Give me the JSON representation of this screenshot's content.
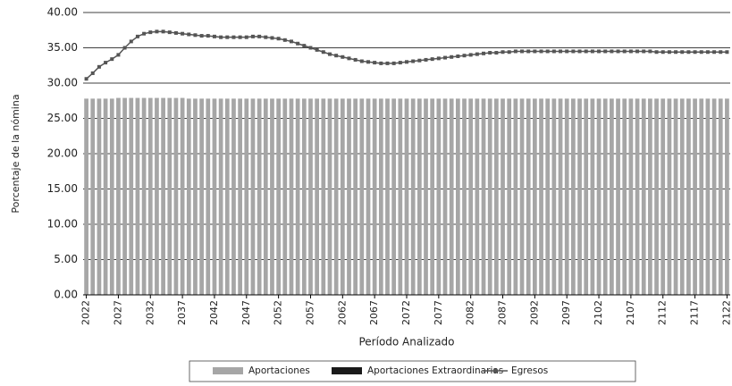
{
  "chart_data": {
    "type": "bar_line",
    "ylabel": "Porcentaje de la nómina",
    "xlabel": "Período Analizado",
    "x": [
      2022,
      2023,
      2024,
      2025,
      2026,
      2027,
      2028,
      2029,
      2030,
      2031,
      2032,
      2033,
      2034,
      2035,
      2036,
      2037,
      2038,
      2039,
      2040,
      2041,
      2042,
      2043,
      2044,
      2045,
      2046,
      2047,
      2048,
      2049,
      2050,
      2051,
      2052,
      2053,
      2054,
      2055,
      2056,
      2057,
      2058,
      2059,
      2060,
      2061,
      2062,
      2063,
      2064,
      2065,
      2066,
      2067,
      2068,
      2069,
      2070,
      2071,
      2072,
      2073,
      2074,
      2075,
      2076,
      2077,
      2078,
      2079,
      2080,
      2081,
      2082,
      2083,
      2084,
      2085,
      2086,
      2087,
      2088,
      2089,
      2090,
      2091,
      2092,
      2093,
      2094,
      2095,
      2096,
      2097,
      2098,
      2099,
      2100,
      2101,
      2102,
      2103,
      2104,
      2105,
      2106,
      2107,
      2108,
      2109,
      2110,
      2111,
      2112,
      2113,
      2114,
      2115,
      2116,
      2117,
      2118,
      2119,
      2120,
      2121,
      2122
    ],
    "xlim": [
      2021.5,
      2122.5
    ],
    "xticks": [
      2022,
      2027,
      2032,
      2037,
      2042,
      2047,
      2052,
      2057,
      2062,
      2067,
      2072,
      2077,
      2082,
      2087,
      2092,
      2097,
      2102,
      2107,
      2112,
      2117,
      2122
    ],
    "ylim": [
      0,
      40
    ],
    "yticks": [
      {
        "value": 0,
        "label": "0.00"
      },
      {
        "value": 5,
        "label": "5.00"
      },
      {
        "value": 10,
        "label": "10.00"
      },
      {
        "value": 15,
        "label": "15.00"
      },
      {
        "value": 20,
        "label": "20.00"
      },
      {
        "value": 25,
        "label": "25.00"
      },
      {
        "value": 30,
        "label": "30.00"
      },
      {
        "value": 35,
        "label": "35.00"
      },
      {
        "value": 40,
        "label": "40.00"
      }
    ],
    "grid": true,
    "series": [
      {
        "name": "Aportaciones",
        "kind": "bar",
        "color": "#a6a6a6",
        "values": [
          27.8,
          27.8,
          27.8,
          27.8,
          27.8,
          27.9,
          27.9,
          27.9,
          27.9,
          27.9,
          27.9,
          27.9,
          27.9,
          27.9,
          27.9,
          27.9,
          27.8,
          27.8,
          27.8,
          27.8,
          27.8,
          27.8,
          27.8,
          27.8,
          27.8,
          27.8,
          27.8,
          27.8,
          27.8,
          27.8,
          27.8,
          27.8,
          27.8,
          27.8,
          27.8,
          27.8,
          27.8,
          27.8,
          27.8,
          27.8,
          27.8,
          27.8,
          27.8,
          27.8,
          27.8,
          27.8,
          27.8,
          27.8,
          27.8,
          27.8,
          27.8,
          27.8,
          27.8,
          27.8,
          27.8,
          27.8,
          27.8,
          27.8,
          27.8,
          27.8,
          27.8,
          27.8,
          27.8,
          27.8,
          27.8,
          27.8,
          27.8,
          27.8,
          27.8,
          27.8,
          27.8,
          27.8,
          27.8,
          27.8,
          27.8,
          27.8,
          27.8,
          27.8,
          27.8,
          27.8,
          27.8,
          27.8,
          27.8,
          27.8,
          27.8,
          27.8,
          27.8,
          27.8,
          27.8,
          27.8,
          27.8,
          27.8,
          27.8,
          27.8,
          27.8,
          27.8,
          27.8,
          27.8,
          27.8,
          27.8,
          27.8
        ]
      },
      {
        "name": "Aportaciones Extraordinarias",
        "kind": "bar",
        "color": "#1a1a1a",
        "values": [
          0,
          0,
          0,
          0,
          0,
          0,
          0,
          0,
          0,
          0,
          0,
          0,
          0,
          0,
          0,
          0,
          0,
          0,
          0,
          0,
          0,
          0,
          0,
          0,
          0,
          0,
          0,
          0,
          0,
          0,
          0,
          0,
          0,
          0,
          0,
          0,
          0,
          0,
          0,
          0,
          0,
          0,
          0,
          0,
          0,
          0,
          0,
          0,
          0,
          0,
          0,
          0,
          0,
          0,
          0,
          0,
          0,
          0,
          0,
          0,
          0,
          0,
          0,
          0,
          0,
          0,
          0,
          0,
          0,
          0,
          0,
          0,
          0,
          0,
          0,
          0,
          0,
          0,
          0,
          0,
          0,
          0,
          0,
          0,
          0,
          0,
          0,
          0,
          0,
          0,
          0,
          0,
          0,
          0,
          0,
          0,
          0,
          0,
          0,
          0,
          0
        ]
      },
      {
        "name": "Egresos",
        "kind": "line",
        "color": "#555555",
        "values": [
          30.6,
          31.4,
          32.3,
          32.9,
          33.4,
          34.0,
          35.0,
          35.9,
          36.6,
          37.0,
          37.2,
          37.3,
          37.3,
          37.2,
          37.1,
          37.0,
          36.9,
          36.8,
          36.7,
          36.7,
          36.6,
          36.5,
          36.5,
          36.5,
          36.5,
          36.5,
          36.6,
          36.6,
          36.5,
          36.4,
          36.3,
          36.1,
          35.9,
          35.6,
          35.3,
          35.0,
          34.7,
          34.4,
          34.1,
          33.9,
          33.7,
          33.5,
          33.3,
          33.1,
          33.0,
          32.9,
          32.8,
          32.8,
          32.8,
          32.9,
          33.0,
          33.1,
          33.2,
          33.3,
          33.4,
          33.5,
          33.6,
          33.7,
          33.8,
          33.9,
          34.0,
          34.1,
          34.2,
          34.3,
          34.3,
          34.4,
          34.4,
          34.5,
          34.5,
          34.5,
          34.5,
          34.5,
          34.5,
          34.5,
          34.5,
          34.5,
          34.5,
          34.5,
          34.5,
          34.5,
          34.5,
          34.5,
          34.5,
          34.5,
          34.5,
          34.5,
          34.5,
          34.5,
          34.5,
          34.4,
          34.4,
          34.4,
          34.4,
          34.4,
          34.4,
          34.4,
          34.4,
          34.4,
          34.4,
          34.4,
          34.4
        ]
      }
    ]
  }
}
